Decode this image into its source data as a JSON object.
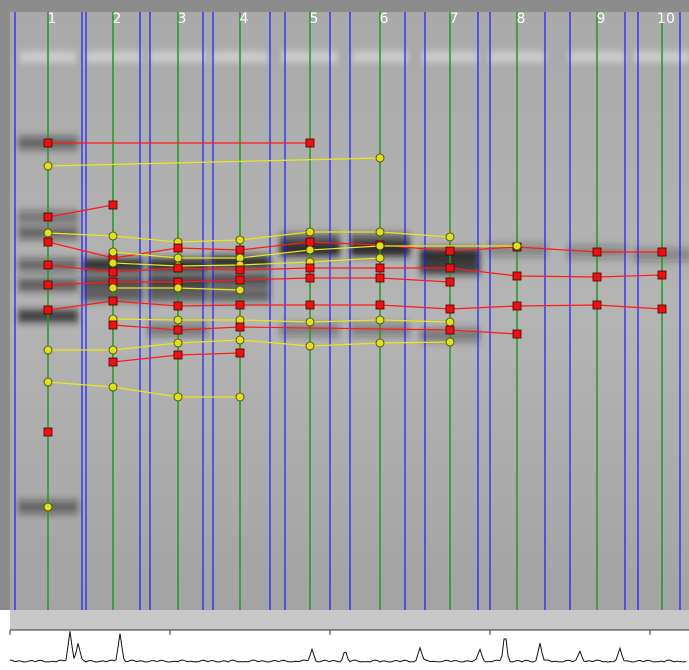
{
  "lanes": {
    "labels": [
      "1",
      "2",
      "3",
      "4",
      "5",
      "6",
      "7",
      "8",
      "9",
      "10"
    ]
  }
}
